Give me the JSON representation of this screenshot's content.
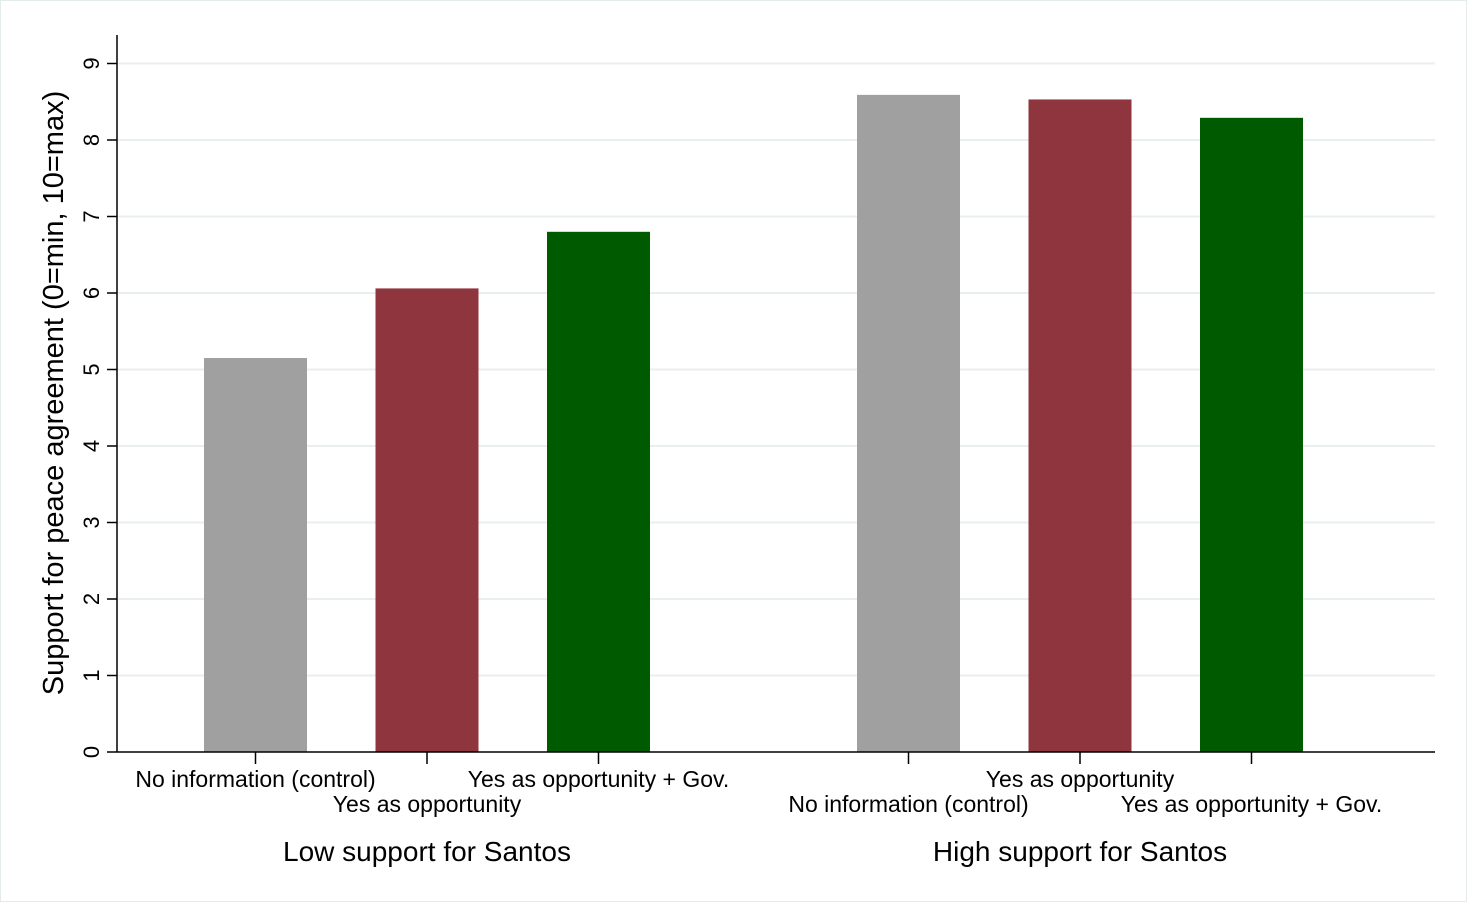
{
  "chart_data": {
    "type": "bar",
    "title": "",
    "ylabel": "Support for peace agreement (0=min, 10=max)",
    "xlabel": "",
    "ylim": [
      0,
      9
    ],
    "yticks": [
      0,
      1,
      2,
      3,
      4,
      5,
      6,
      7,
      8,
      9
    ],
    "grid": true,
    "legend": "none",
    "series_colors": [
      "#a0a0a0",
      "#8f353e",
      "#005a00"
    ],
    "groups": [
      {
        "name": "Low support for Santos",
        "bars": [
          {
            "label": "No information (control)",
            "value": 5.15,
            "color": "#a0a0a0"
          },
          {
            "label": "Yes as opportunity",
            "value": 6.06,
            "color": "#8f353e"
          },
          {
            "label": "Yes as opportunity + Gov.",
            "value": 6.8,
            "color": "#005a00"
          }
        ]
      },
      {
        "name": "High support for Santos",
        "bars": [
          {
            "label": "No information (control)",
            "value": 8.59,
            "color": "#a0a0a0"
          },
          {
            "label": "Yes as opportunity",
            "value": 8.53,
            "color": "#8f353e"
          },
          {
            "label": "Yes as opportunity + Gov.",
            "value": 8.29,
            "color": "#005a00"
          }
        ]
      }
    ]
  }
}
